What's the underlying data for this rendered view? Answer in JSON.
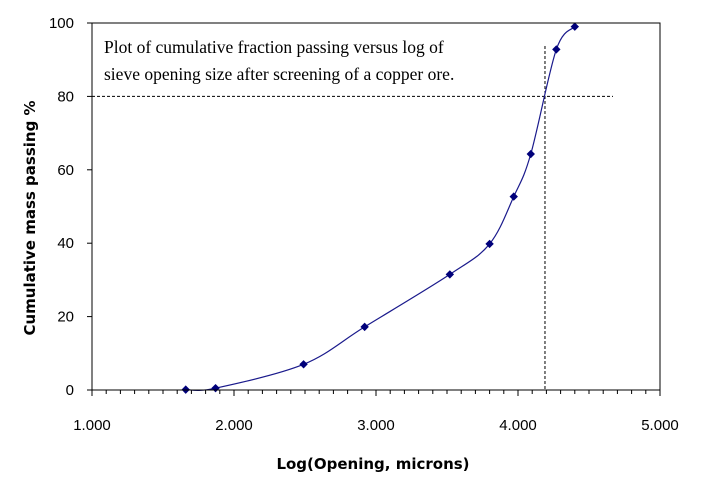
{
  "chart_data": {
    "type": "scatter",
    "title": "",
    "xlabel": "Log(Opening, microns)",
    "ylabel": "Cumulative mass passing  %",
    "xlim": [
      1.0,
      5.0
    ],
    "ylim": [
      0,
      100
    ],
    "x_ticks": [
      "1.000",
      "2.000",
      "3.000",
      "4.000",
      "5.000"
    ],
    "y_ticks": [
      "0",
      "20",
      "40",
      "60",
      "80",
      "100"
    ],
    "grid": false,
    "legend": "none",
    "series": [
      {
        "name": "Cumulative fraction passing",
        "marker": "diamond",
        "line": "smooth",
        "x": [
          1.66,
          1.87,
          2.49,
          2.92,
          3.52,
          3.8,
          3.97,
          4.09,
          4.27,
          4.4
        ],
        "y": [
          0.1,
          0.5,
          7,
          17.2,
          31.5,
          39.8,
          52.7,
          64.3,
          92.8,
          99
        ]
      }
    ],
    "reference_lines": {
      "horizontal_y": 80,
      "vertical_x": 4.19
    },
    "annotation": {
      "line1": "Plot of cumulative fraction passing versus log of",
      "line2": "sieve opening size after screening of a copper ore."
    },
    "colors": {
      "series": "#1a1a8c",
      "marker": "#00007a",
      "axis": "#000000",
      "reference": "#000000"
    }
  }
}
